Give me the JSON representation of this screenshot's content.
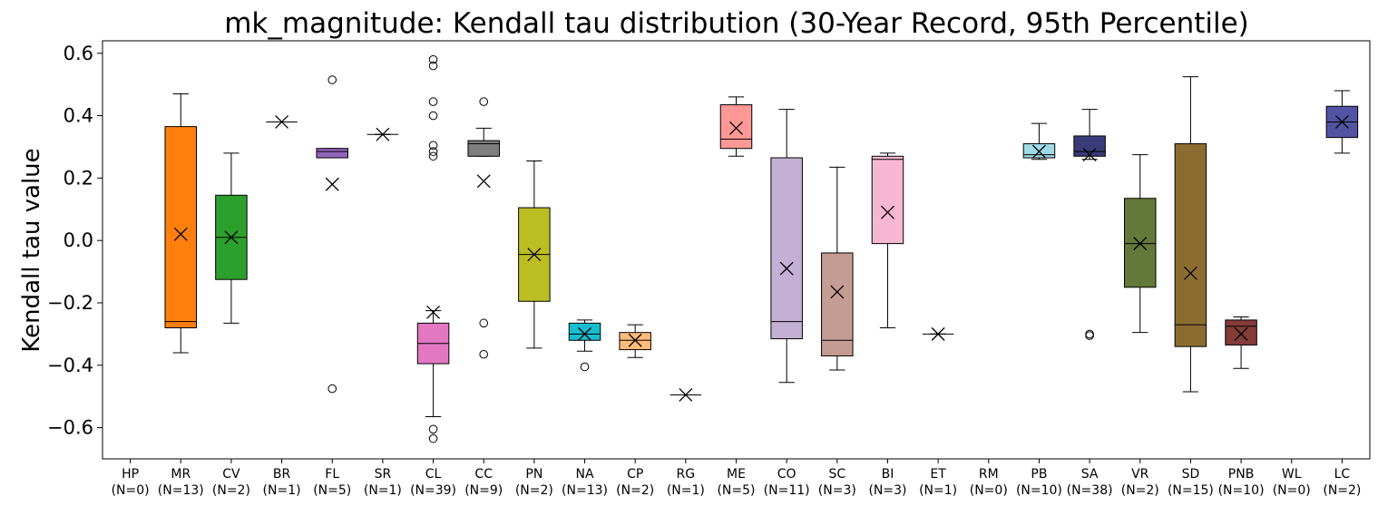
{
  "chart_data": {
    "type": "box",
    "title": "mk_magnitude: Kendall tau distribution (30-Year Record, 95th Percentile)",
    "xlabel": "",
    "ylabel": "Kendall tau value",
    "ylim": [
      -0.7,
      0.64
    ],
    "yticks": [
      -0.6,
      -0.4,
      -0.2,
      0.0,
      0.2,
      0.4,
      0.6
    ],
    "ytick_labels": [
      "−0.6",
      "−0.4",
      "−0.2",
      "0.0",
      "0.2",
      "0.4",
      "0.6"
    ],
    "mean_marker": "x",
    "grid": false,
    "categories": [
      {
        "code": "HP",
        "n_label": "(N=0)",
        "color": "#1f77b4",
        "box": null,
        "mean": null,
        "outliers": []
      },
      {
        "code": "MR",
        "n_label": "(N=13)",
        "color": "#ff7f0e",
        "box": {
          "whislo": -0.36,
          "q1": -0.28,
          "med": -0.26,
          "q3": 0.365,
          "whishi": 0.47
        },
        "mean": 0.02,
        "outliers": []
      },
      {
        "code": "CV",
        "n_label": "(N=2)",
        "color": "#2ca02c",
        "box": {
          "whislo": -0.265,
          "q1": -0.125,
          "med": 0.01,
          "q3": 0.145,
          "whishi": 0.28
        },
        "mean": 0.01,
        "outliers": []
      },
      {
        "code": "BR",
        "n_label": "(N=1)",
        "color": "#d62728",
        "box": {
          "whislo": 0.38,
          "q1": 0.38,
          "med": 0.38,
          "q3": 0.38,
          "whishi": 0.38
        },
        "mean": 0.38,
        "outliers": []
      },
      {
        "code": "FL",
        "n_label": "(N=5)",
        "color": "#9467bd",
        "box": {
          "whislo": 0.265,
          "q1": 0.265,
          "med": 0.285,
          "q3": 0.295,
          "whishi": 0.295
        },
        "mean": 0.18,
        "outliers": [
          0.515,
          -0.475
        ]
      },
      {
        "code": "SR",
        "n_label": "(N=1)",
        "color": "#8c564b",
        "box": {
          "whislo": 0.34,
          "q1": 0.34,
          "med": 0.34,
          "q3": 0.34,
          "whishi": 0.34
        },
        "mean": 0.34,
        "outliers": []
      },
      {
        "code": "CL",
        "n_label": "(N=39)",
        "color": "#e377c2",
        "box": {
          "whislo": -0.565,
          "q1": -0.395,
          "med": -0.33,
          "q3": -0.265,
          "whishi": -0.225
        },
        "mean": -0.23,
        "outliers": [
          0.58,
          0.56,
          0.445,
          0.4,
          0.305,
          0.285,
          0.27,
          -0.605,
          -0.635
        ]
      },
      {
        "code": "CC",
        "n_label": "(N=9)",
        "color": "#7f7f7f",
        "box": {
          "whislo": 0.27,
          "q1": 0.27,
          "med": 0.31,
          "q3": 0.32,
          "whishi": 0.36
        },
        "mean": 0.19,
        "outliers": [
          0.445,
          -0.265,
          -0.365
        ]
      },
      {
        "code": "PN",
        "n_label": "(N=2)",
        "color": "#bcbd22",
        "box": {
          "whislo": -0.345,
          "q1": -0.195,
          "med": -0.045,
          "q3": 0.105,
          "whishi": 0.255
        },
        "mean": -0.045,
        "outliers": []
      },
      {
        "code": "NA",
        "n_label": "(N=13)",
        "color": "#17becf",
        "box": {
          "whislo": -0.355,
          "q1": -0.32,
          "med": -0.3,
          "q3": -0.265,
          "whishi": -0.255
        },
        "mean": -0.3,
        "outliers": [
          -0.405
        ]
      },
      {
        "code": "CP",
        "n_label": "(N=2)",
        "color": "#ffbb78",
        "box": {
          "whislo": -0.375,
          "q1": -0.35,
          "med": -0.32,
          "q3": -0.295,
          "whishi": -0.27
        },
        "mean": -0.32,
        "outliers": []
      },
      {
        "code": "RG",
        "n_label": "(N=1)",
        "color": "#ff9896",
        "box": {
          "whislo": -0.495,
          "q1": -0.495,
          "med": -0.495,
          "q3": -0.495,
          "whishi": -0.495
        },
        "mean": -0.495,
        "outliers": []
      },
      {
        "code": "ME",
        "n_label": "(N=5)",
        "color": "#ff9896",
        "box": {
          "whislo": 0.27,
          "q1": 0.295,
          "med": 0.325,
          "q3": 0.435,
          "whishi": 0.46
        },
        "mean": 0.36,
        "outliers": []
      },
      {
        "code": "CO",
        "n_label": "(N=11)",
        "color": "#c5b0d5",
        "box": {
          "whislo": -0.455,
          "q1": -0.315,
          "med": -0.26,
          "q3": 0.265,
          "whishi": 0.42
        },
        "mean": -0.09,
        "outliers": []
      },
      {
        "code": "SC",
        "n_label": "(N=3)",
        "color": "#c49c94",
        "box": {
          "whislo": -0.415,
          "q1": -0.37,
          "med": -0.32,
          "q3": -0.04,
          "whishi": 0.235
        },
        "mean": -0.165,
        "outliers": []
      },
      {
        "code": "BI",
        "n_label": "(N=3)",
        "color": "#f7b6d2",
        "box": {
          "whislo": -0.28,
          "q1": -0.01,
          "med": 0.26,
          "q3": 0.27,
          "whishi": 0.28
        },
        "mean": 0.09,
        "outliers": []
      },
      {
        "code": "ET",
        "n_label": "(N=1)",
        "color": "#c7c7c7",
        "box": {
          "whislo": -0.3,
          "q1": -0.3,
          "med": -0.3,
          "q3": -0.3,
          "whishi": -0.3
        },
        "mean": -0.3,
        "outliers": []
      },
      {
        "code": "RM",
        "n_label": "(N=0)",
        "color": "#dbdb8d",
        "box": null,
        "mean": null,
        "outliers": []
      },
      {
        "code": "PB",
        "n_label": "(N=10)",
        "color": "#9edae5",
        "box": {
          "whislo": 0.26,
          "q1": 0.265,
          "med": 0.275,
          "q3": 0.31,
          "whishi": 0.375
        },
        "mean": 0.285,
        "outliers": []
      },
      {
        "code": "SA",
        "n_label": "(N=38)",
        "color": "#393b79",
        "box": {
          "whislo": 0.26,
          "q1": 0.27,
          "med": 0.285,
          "q3": 0.335,
          "whishi": 0.42
        },
        "mean": 0.275,
        "outliers": [
          -0.3,
          -0.305
        ]
      },
      {
        "code": "VR",
        "n_label": "(N=2)",
        "color": "#637939",
        "box": {
          "whislo": -0.295,
          "q1": -0.15,
          "med": -0.01,
          "q3": 0.135,
          "whishi": 0.275
        },
        "mean": -0.01,
        "outliers": []
      },
      {
        "code": "SD",
        "n_label": "(N=15)",
        "color": "#8c6d31",
        "box": {
          "whislo": -0.485,
          "q1": -0.34,
          "med": -0.27,
          "q3": 0.31,
          "whishi": 0.525
        },
        "mean": -0.105,
        "outliers": []
      },
      {
        "code": "PNB",
        "n_label": "(N=10)",
        "color": "#843c39",
        "box": {
          "whislo": -0.41,
          "q1": -0.335,
          "med": -0.275,
          "q3": -0.255,
          "whishi": -0.245
        },
        "mean": -0.3,
        "outliers": []
      },
      {
        "code": "WL",
        "n_label": "(N=0)",
        "color": "#7b4173",
        "box": null,
        "mean": null,
        "outliers": []
      },
      {
        "code": "LC",
        "n_label": "(N=2)",
        "color": "#5254a3",
        "box": {
          "whislo": 0.28,
          "q1": 0.33,
          "med": 0.38,
          "q3": 0.43,
          "whishi": 0.48
        },
        "mean": 0.38,
        "outliers": []
      }
    ]
  }
}
